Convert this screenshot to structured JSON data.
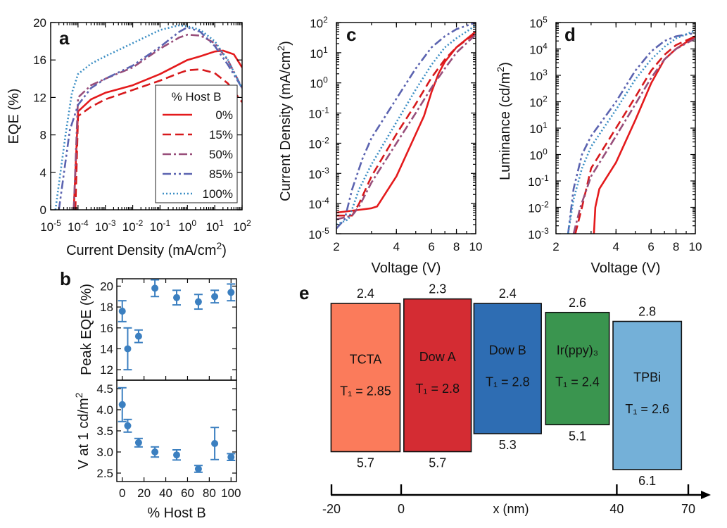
{
  "panels": {
    "a": "a",
    "b": "b",
    "c": "c",
    "d": "d",
    "e": "e"
  },
  "chart_data": [
    {
      "type": "line",
      "panel": "a",
      "xlabel": "Current Density (mA/cm²)",
      "ylabel": "EQE (%)",
      "xscale": "log",
      "xlim": [
        1e-05,
        100
      ],
      "ylim": [
        0,
        20
      ],
      "xtick_exponents": [
        -5,
        -4,
        -3,
        -2,
        -1,
        0,
        1,
        2
      ],
      "yticks": [
        0,
        4,
        8,
        12,
        16,
        20
      ],
      "legend": {
        "title": "% Host B",
        "placement": "lower-right"
      },
      "series": [
        {
          "name": "0%",
          "color": "#e41a1c",
          "dash": "solid",
          "x": [
            7e-05,
            0.0001,
            0.0003,
            0.001,
            0.01,
            0.1,
            1,
            3,
            10,
            20,
            50,
            100
          ],
          "y": [
            0,
            10.5,
            11.8,
            12.5,
            13.3,
            14.5,
            16.0,
            16.4,
            16.9,
            17.0,
            16.6,
            15.2
          ]
        },
        {
          "name": "15%",
          "color": "#d7191c",
          "dash": "12,6",
          "x": [
            8e-05,
            0.0001,
            0.0003,
            0.001,
            0.01,
            0.1,
            0.5,
            1,
            3,
            10,
            30,
            100
          ],
          "y": [
            0,
            10.0,
            11.0,
            11.8,
            12.8,
            13.8,
            14.6,
            14.9,
            15.0,
            14.6,
            13.5,
            11.5
          ]
        },
        {
          "name": "50%",
          "color": "#984e7a",
          "dash": "12,4,3,4",
          "x": [
            7e-05,
            0.0001,
            0.0003,
            0.001,
            0.01,
            0.1,
            0.5,
            1,
            3,
            10,
            30,
            100
          ],
          "y": [
            0,
            12.0,
            13.3,
            14.0,
            15.2,
            17.2,
            18.4,
            18.7,
            18.6,
            17.8,
            16.0,
            13.0
          ]
        },
        {
          "name": "85%",
          "color": "#5b63b0",
          "dash": "12,4,3,4,3,4",
          "x": [
            2e-05,
            5e-05,
            0.0001,
            0.0003,
            0.001,
            0.01,
            0.1,
            0.5,
            1,
            3,
            10,
            30,
            100
          ],
          "y": [
            0,
            8.5,
            11.2,
            13.0,
            14.0,
            15.4,
            17.4,
            19.0,
            19.5,
            19.0,
            17.5,
            15.5,
            13.0
          ]
        },
        {
          "name": "100%",
          "color": "#3b8ec4",
          "dash": "2,3",
          "x": [
            1.5e-05,
            3.5e-05,
            6e-05,
            0.0001,
            0.0003,
            0.001,
            0.01,
            0.1,
            0.5,
            1,
            3,
            10,
            30,
            100
          ],
          "y": [
            0,
            8.0,
            12.5,
            14.5,
            15.6,
            16.4,
            17.8,
            19.2,
            19.7,
            19.6,
            19.2,
            18.0,
            16.0,
            13.0
          ]
        }
      ]
    },
    {
      "type": "scatter",
      "panel": "b-top",
      "ylabel": "Peak EQE (%)",
      "xlim": [
        -5,
        105
      ],
      "ylim": [
        11,
        20.7
      ],
      "yticks": [
        12,
        14,
        16,
        18,
        20
      ],
      "color": "#3b7fc0",
      "x": [
        0,
        5,
        15,
        30,
        50,
        70,
        85,
        100
      ],
      "y": [
        17.6,
        14.0,
        15.2,
        19.8,
        18.9,
        18.5,
        19.0,
        19.4
      ],
      "yerr": [
        1.0,
        2.0,
        0.6,
        0.8,
        0.7,
        0.7,
        0.6,
        0.8
      ]
    },
    {
      "type": "scatter",
      "panel": "b-bottom",
      "xlabel": "% Host B",
      "ylabel": "V at 1 cd/m²",
      "xlim": [
        -5,
        105
      ],
      "ylim": [
        2.3,
        4.7
      ],
      "xticks": [
        0,
        20,
        40,
        60,
        80,
        100
      ],
      "yticks": [
        2.5,
        3.0,
        3.5,
        4.0,
        4.5
      ],
      "ytick_labels": [
        "2.5",
        "3.0",
        "3.5",
        "4.0",
        "4.5"
      ],
      "color": "#3b7fc0",
      "x": [
        0,
        5,
        15,
        30,
        50,
        70,
        85,
        100
      ],
      "y": [
        4.12,
        3.62,
        3.22,
        3.0,
        2.93,
        2.6,
        3.2,
        2.88
      ],
      "yerr": [
        0.4,
        0.15,
        0.1,
        0.12,
        0.12,
        0.08,
        0.38,
        0.08
      ]
    },
    {
      "type": "line",
      "panel": "c",
      "xlabel": "Voltage (V)",
      "ylabel": "Current Density (mA/cm²)",
      "xscale": "log",
      "yscale": "log",
      "xlim": [
        2,
        10
      ],
      "ylim": [
        1e-05,
        100
      ],
      "xticks": [
        2,
        4,
        6,
        8,
        10
      ],
      "ytick_exponents": [
        -5,
        -4,
        -3,
        -2,
        -1,
        0,
        1,
        2
      ],
      "series": [
        {
          "name": "0%",
          "color": "#e41a1c",
          "dash": "solid",
          "x": [
            2,
            2.5,
            3,
            3.2,
            4,
            5,
            5.5,
            6,
            6.5,
            7,
            8,
            10
          ],
          "y": [
            5e-05,
            6e-05,
            7e-05,
            8e-05,
            0.0008,
            0.02,
            0.08,
            0.5,
            2,
            5,
            15,
            50
          ]
        },
        {
          "name": "15%",
          "color": "#d7191c",
          "dash": "12,6",
          "x": [
            2,
            2.4,
            2.6,
            3,
            4,
            5,
            6,
            7,
            8,
            10
          ],
          "y": [
            4e-05,
            4e-05,
            0.0001,
            0.0008,
            0.02,
            0.2,
            1.5,
            6,
            15,
            45
          ]
        },
        {
          "name": "50%",
          "color": "#984e7a",
          "dash": "12,4,3,4",
          "x": [
            2,
            2.4,
            2.6,
            3,
            4,
            5,
            6,
            7,
            8,
            10
          ],
          "y": [
            3e-05,
            4e-05,
            8e-05,
            0.0005,
            0.01,
            0.1,
            0.7,
            3,
            10,
            40
          ]
        },
        {
          "name": "85%",
          "color": "#5b63b0",
          "dash": "12,4,3,4,3,4",
          "x": [
            2,
            2.2,
            2.4,
            2.7,
            3,
            4,
            5,
            6,
            7,
            8,
            10
          ],
          "y": [
            1.5e-05,
            3e-05,
            0.0003,
            0.003,
            0.015,
            0.3,
            3,
            15,
            35,
            60,
            100
          ]
        },
        {
          "name": "100%",
          "color": "#3b8ec4",
          "dash": "2,3",
          "x": [
            2,
            2.3,
            2.6,
            3,
            4,
            5,
            6,
            7,
            8,
            10
          ],
          "y": [
            2e-05,
            3e-05,
            0.0003,
            0.002,
            0.05,
            0.6,
            4,
            15,
            30,
            80
          ]
        }
      ]
    },
    {
      "type": "line",
      "panel": "d",
      "xlabel": "Voltage (V)",
      "ylabel": "Luminance (cd/m²)",
      "xscale": "log",
      "yscale": "log",
      "xlim": [
        2,
        10
      ],
      "ylim": [
        0.001,
        100000
      ],
      "xticks": [
        2,
        4,
        6,
        8,
        10
      ],
      "ytick_exponents": [
        -3,
        -2,
        -1,
        0,
        1,
        2,
        3,
        4,
        5
      ],
      "series": [
        {
          "name": "0%",
          "color": "#e41a1c",
          "dash": "solid",
          "x": [
            3.1,
            3.15,
            3.3,
            4,
            5,
            6,
            7,
            8,
            10
          ],
          "y": [
            0.001,
            0.01,
            0.05,
            0.5,
            20,
            500,
            4000,
            10000,
            30000
          ]
        },
        {
          "name": "15%",
          "color": "#d7191c",
          "dash": "12,6",
          "x": [
            2.5,
            2.7,
            3,
            4,
            5,
            6,
            7,
            8,
            10
          ],
          "y": [
            0.001,
            0.01,
            0.3,
            10,
            150,
            1500,
            6000,
            14000,
            30000
          ]
        },
        {
          "name": "50%",
          "color": "#984e7a",
          "dash": "12,4,3,4",
          "x": [
            2.45,
            2.65,
            3,
            4,
            5,
            6,
            7,
            8,
            10
          ],
          "y": [
            0.001,
            0.01,
            0.15,
            5,
            80,
            800,
            4000,
            10000,
            25000
          ]
        },
        {
          "name": "85%",
          "color": "#5b63b0",
          "dash": "12,4,3,4,3,4",
          "x": [
            2.3,
            2.45,
            2.7,
            3,
            4,
            5,
            6,
            7,
            8,
            10
          ],
          "y": [
            0.001,
            0.05,
            1,
            5,
            100,
            1500,
            8000,
            20000,
            30000,
            40000
          ]
        },
        {
          "name": "100%",
          "color": "#3b8ec4",
          "dash": "2,3",
          "x": [
            2.3,
            2.45,
            2.7,
            3,
            4,
            5,
            6,
            7,
            8,
            10
          ],
          "y": [
            0.001,
            0.02,
            0.3,
            2,
            50,
            700,
            4000,
            12000,
            25000,
            50000
          ]
        }
      ]
    }
  ],
  "diagram_e": {
    "panel": "e",
    "xlabel": "x (nm)",
    "axis_ticks": [
      "-20",
      "0",
      "40",
      "70"
    ],
    "layers": [
      {
        "name": "TCTA",
        "lumo": "2.4",
        "homo": "5.7",
        "t1": "T₁ = 2.85",
        "color": "#fb7b5b"
      },
      {
        "name": "Dow A",
        "lumo": "2.3",
        "homo": "5.7",
        "t1": "T₁ = 2.8",
        "color": "#d42c33"
      },
      {
        "name": "Dow B",
        "lumo": "2.4",
        "homo": "5.3",
        "t1": "T₁ = 2.8",
        "color": "#2e6db3"
      },
      {
        "name": "Ir(ppy)₃",
        "lumo": "2.6",
        "homo": "5.1",
        "t1": "T₁ = 2.4",
        "color": "#3a954f"
      },
      {
        "name": "TPBi",
        "lumo": "2.8",
        "homo": "6.1",
        "t1": "T₁ = 2.6",
        "color": "#74b0d8"
      }
    ]
  }
}
